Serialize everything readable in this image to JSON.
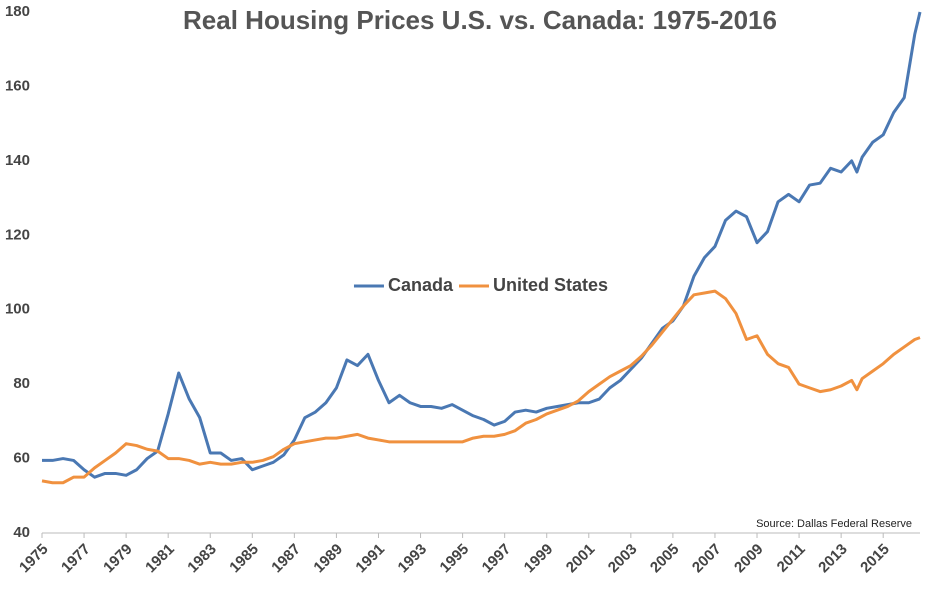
{
  "chart_data": {
    "type": "line",
    "title": "Real Housing Prices U.S. vs. Canada: 1975-2016",
    "annotation": "Source: Dallas Federal Reserve",
    "legend": "center",
    "x": [
      1975,
      1975.5,
      1976,
      1976.5,
      1977,
      1977.5,
      1978,
      1978.5,
      1979,
      1979.5,
      1980,
      1980.5,
      1981,
      1981.5,
      1982,
      1982.5,
      1983,
      1983.5,
      1984,
      1984.5,
      1985,
      1985.5,
      1986,
      1986.5,
      1987,
      1987.5,
      1988,
      1988.5,
      1989,
      1989.5,
      1990,
      1990.5,
      1991,
      1991.5,
      1992,
      1992.5,
      1993,
      1993.5,
      1994,
      1994.5,
      1995,
      1995.5,
      1996,
      1996.5,
      1997,
      1997.5,
      1998,
      1998.5,
      1999,
      1999.5,
      2000,
      2000.5,
      2001,
      2001.5,
      2002,
      2002.5,
      2003,
      2003.5,
      2004,
      2004.5,
      2005,
      2005.5,
      2006,
      2006.5,
      2007,
      2007.5,
      2008,
      2008.5,
      2009,
      2009.5,
      2010,
      2010.5,
      2011,
      2011.5,
      2012,
      2012.5,
      2013,
      2013.5,
      2013.75,
      2014,
      2014.5,
      2015,
      2015.5,
      2016,
      2016.5,
      2016.75
    ],
    "series": [
      {
        "name": "Canada",
        "color": "#4a78b3",
        "values": [
          59.5,
          59.5,
          60,
          59.5,
          57,
          55,
          56,
          56,
          55.5,
          57,
          60,
          62,
          72,
          83,
          76,
          71,
          61.5,
          61.5,
          59.5,
          60,
          57,
          58,
          59,
          61,
          65,
          71,
          72.5,
          75,
          79,
          86.5,
          85,
          88,
          81,
          75,
          77,
          75,
          74,
          74,
          73.5,
          74.5,
          73,
          71.5,
          70.5,
          69,
          70,
          72.5,
          73,
          72.5,
          73.5,
          74,
          74.5,
          75,
          75,
          76,
          79,
          81,
          84,
          87,
          91,
          95,
          97,
          101,
          109,
          114,
          117,
          124,
          126.5,
          125,
          118,
          121,
          129,
          131,
          129,
          133.5,
          134,
          138,
          137,
          140,
          137,
          141,
          145,
          147,
          153,
          157,
          174,
          180
        ]
      },
      {
        "name": "United States",
        "color": "#f0913f",
        "values": [
          54,
          53.5,
          53.5,
          55,
          55,
          57.5,
          59.5,
          61.5,
          64,
          63.5,
          62.5,
          62,
          60,
          60,
          59.5,
          58.5,
          59,
          58.5,
          58.5,
          59,
          59,
          59.5,
          60.5,
          62.5,
          64,
          64.5,
          65,
          65.5,
          65.5,
          66,
          66.5,
          65.5,
          65,
          64.5,
          64.5,
          64.5,
          64.5,
          64.5,
          64.5,
          64.5,
          64.5,
          65.5,
          66,
          66,
          66.5,
          67.5,
          69.5,
          70.5,
          72,
          73,
          74,
          75.5,
          78,
          80,
          82,
          83.5,
          85,
          87.5,
          90.5,
          94,
          97.5,
          101,
          104,
          104.5,
          105,
          103,
          99,
          92,
          93,
          88,
          85.5,
          84.5,
          80,
          79,
          78,
          78.5,
          79.5,
          81,
          78.5,
          81.5,
          83.5,
          85.5,
          88,
          90,
          92,
          92.5
        ]
      }
    ],
    "xlim": [
      1975,
      2016.75
    ],
    "xticks": [
      1975,
      1977,
      1979,
      1981,
      1983,
      1985,
      1987,
      1989,
      1991,
      1993,
      1995,
      1997,
      1999,
      2001,
      2003,
      2005,
      2007,
      2009,
      2011,
      2013,
      2015
    ],
    "ylim": [
      40,
      180
    ],
    "yticks": [
      40,
      60,
      80,
      100,
      120,
      140,
      160,
      180
    ],
    "grid": false
  }
}
